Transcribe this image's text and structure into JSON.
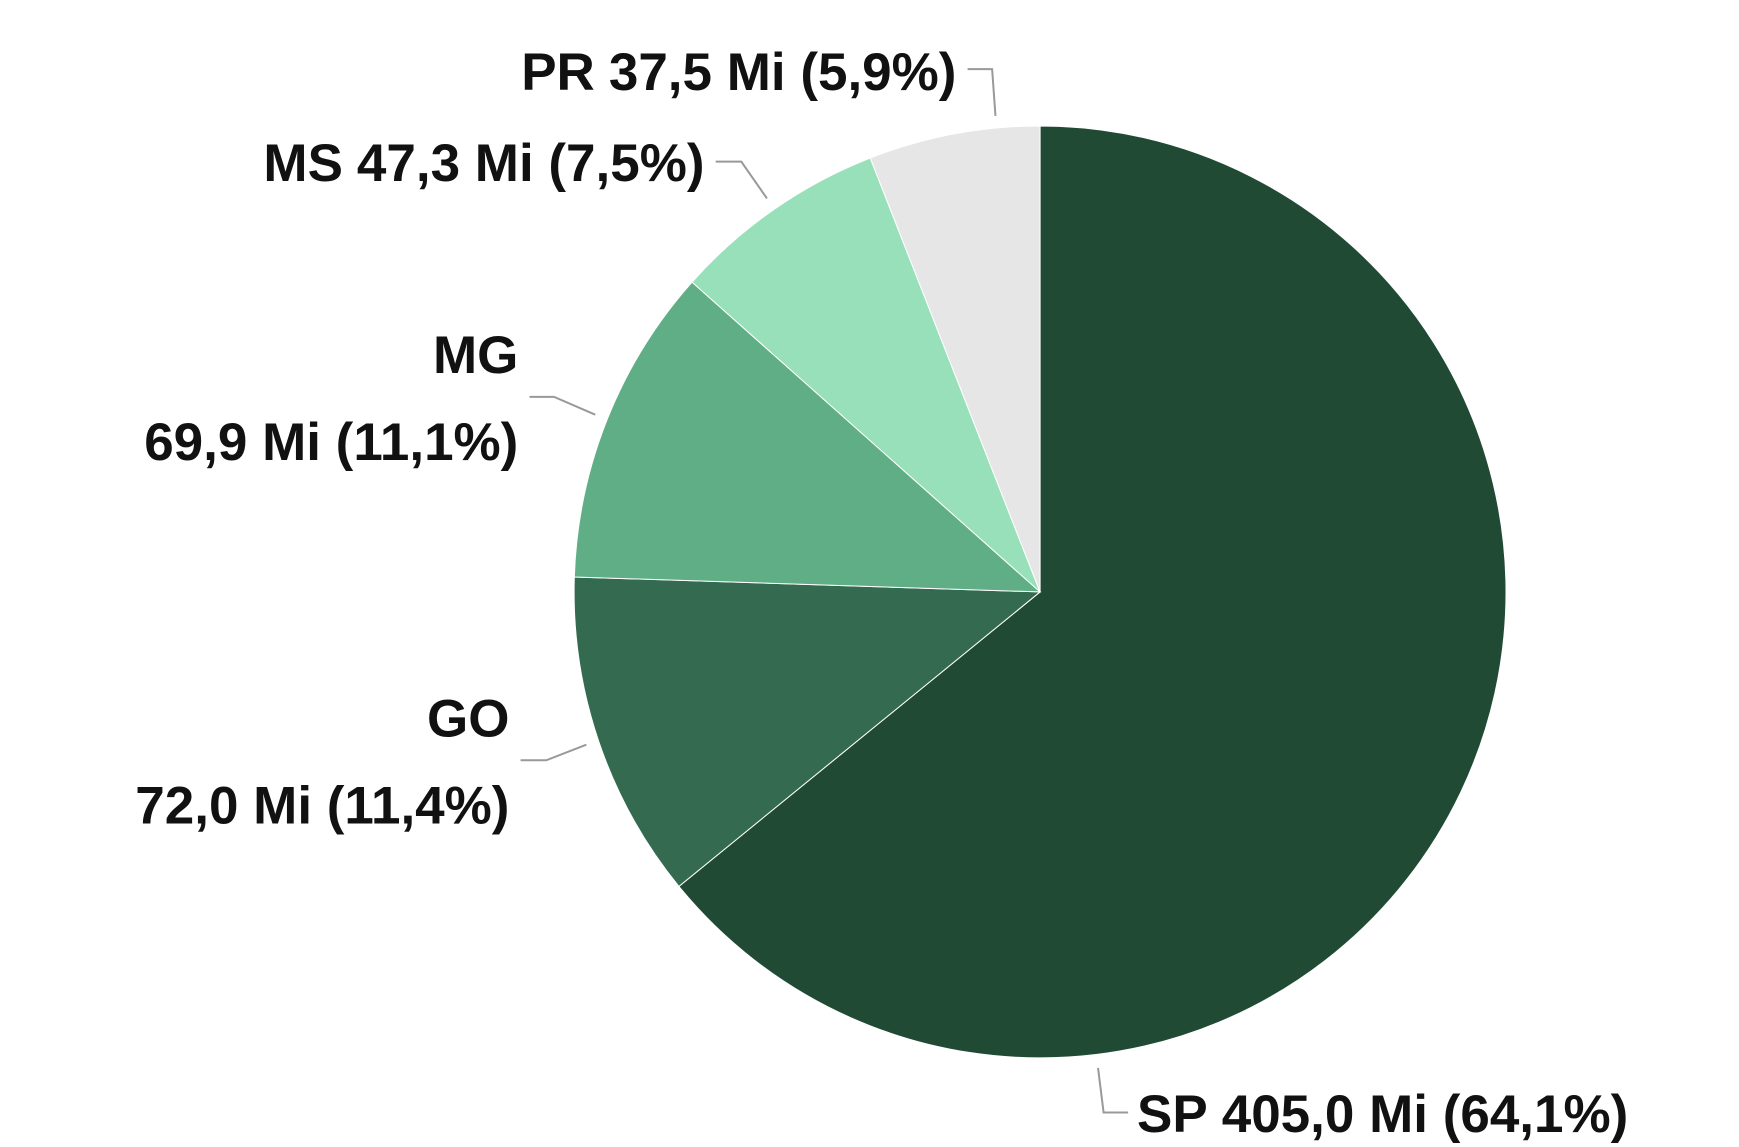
{
  "chart_data": {
    "type": "pie",
    "categories": [
      "SP",
      "GO",
      "MG",
      "MS",
      "PR"
    ],
    "values": [
      405.0,
      72.0,
      69.9,
      47.3,
      37.5
    ],
    "value_labels": [
      "405,0 Mi (64,1%)",
      "72,0 Mi (11,4%)",
      "69,9 Mi (11,1%)",
      "47,3 Mi (7,5%)",
      "37,5 Mi (5,9%)"
    ],
    "colors": [
      "#214a35",
      "#346b50",
      "#5fae86",
      "#98e0b9",
      "#e6e6e6"
    ]
  }
}
